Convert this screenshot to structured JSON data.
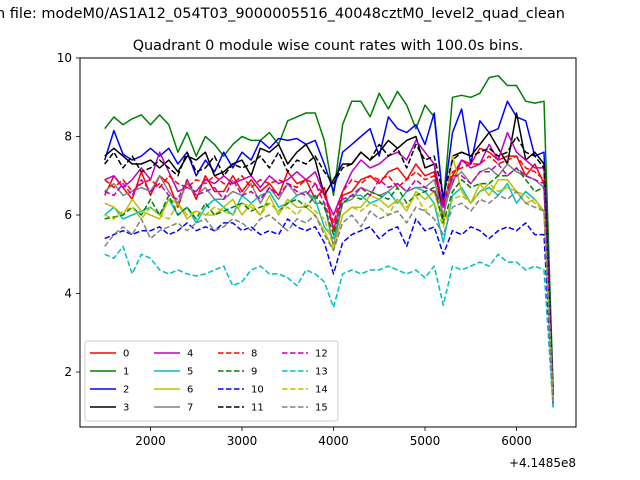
{
  "suptitle": "n file: modeM0/AS1A12_054T03_9000005516_40048cztM0_level2_quad_clean",
  "chart_data": {
    "type": "line",
    "title": "Quadrant 0 module wise count rates with 100.0s bins.",
    "xlabel": "",
    "ylabel": "",
    "x_offset_label": "+4.1485e8",
    "xlim": [
      1230,
      6650
    ],
    "ylim": [
      0.6,
      10.0
    ],
    "xticks": [
      "2000",
      "3000",
      "4000",
      "5000",
      "6000"
    ],
    "yticks": [
      "2",
      "4",
      "6",
      "8",
      "10"
    ],
    "grid": false,
    "legend_position": "lower-left",
    "legend_columns": 4,
    "x": [
      1500,
      1600,
      1700,
      1800,
      1900,
      2000,
      2100,
      2200,
      2300,
      2400,
      2500,
      2600,
      2700,
      2800,
      2900,
      3000,
      3100,
      3200,
      3300,
      3400,
      3500,
      3600,
      3700,
      3800,
      3900,
      4000,
      4100,
      4200,
      4300,
      4400,
      4500,
      4600,
      4700,
      4800,
      4900,
      5000,
      5100,
      5200,
      5300,
      5400,
      5500,
      5600,
      5700,
      5800,
      5900,
      6000,
      6100,
      6200,
      6300,
      6400
    ],
    "series": [
      {
        "name": "0",
        "color": "#ff0000",
        "style": "solid",
        "values": [
          6.5,
          7.0,
          6.7,
          6.4,
          7.1,
          6.5,
          7.0,
          6.8,
          6.2,
          6.9,
          6.4,
          7.0,
          6.6,
          6.6,
          7.0,
          6.6,
          6.9,
          6.6,
          6.8,
          6.5,
          7.1,
          6.8,
          6.9,
          6.4,
          6.7,
          5.6,
          6.5,
          6.6,
          6.9,
          7.0,
          6.8,
          7.1,
          7.2,
          6.9,
          7.3,
          7.0,
          7.1,
          6.2,
          7.0,
          7.4,
          7.3,
          7.7,
          7.6,
          7.4,
          7.5,
          7.5,
          7.0,
          7.3,
          6.8,
          1.5
        ]
      },
      {
        "name": "1",
        "color": "#008000",
        "style": "solid",
        "values": [
          8.2,
          8.5,
          8.3,
          8.45,
          8.55,
          8.3,
          8.55,
          8.3,
          7.6,
          8.1,
          7.5,
          8.0,
          7.8,
          7.5,
          7.8,
          8.0,
          7.9,
          7.9,
          8.1,
          7.8,
          8.4,
          8.5,
          8.6,
          8.6,
          7.9,
          6.5,
          8.3,
          8.9,
          8.9,
          8.5,
          9.1,
          8.7,
          9.15,
          8.8,
          8.2,
          8.8,
          8.5,
          6.3,
          9.0,
          9.05,
          9.0,
          9.1,
          9.5,
          9.55,
          9.3,
          9.3,
          8.9,
          8.85,
          8.9,
          1.6
        ]
      },
      {
        "name": "2",
        "color": "#0000ff",
        "style": "solid",
        "values": [
          7.4,
          8.15,
          7.55,
          7.4,
          7.5,
          7.7,
          7.5,
          7.7,
          7.3,
          7.6,
          7.0,
          7.4,
          7.1,
          7.6,
          7.2,
          7.6,
          7.4,
          7.9,
          7.7,
          7.95,
          7.9,
          7.95,
          7.8,
          7.9,
          7.3,
          6.6,
          7.6,
          7.8,
          8.0,
          8.2,
          7.5,
          8.5,
          8.2,
          8.1,
          8.3,
          7.8,
          8.6,
          6.3,
          8.1,
          8.7,
          7.3,
          8.4,
          8.1,
          8.2,
          8.9,
          8.5,
          8.4,
          7.5,
          7.6,
          1.5
        ]
      },
      {
        "name": "3",
        "color": "#000000",
        "style": "solid",
        "values": [
          7.5,
          7.7,
          7.5,
          7.3,
          7.3,
          7.4,
          7.2,
          7.4,
          7.1,
          7.5,
          7.4,
          7.6,
          7.0,
          7.1,
          7.3,
          7.4,
          7.0,
          7.7,
          7.6,
          7.8,
          7.3,
          7.6,
          7.8,
          7.4,
          6.5,
          6.9,
          7.3,
          7.3,
          7.6,
          7.4,
          7.6,
          7.9,
          7.7,
          7.9,
          8.0,
          7.2,
          7.3,
          5.9,
          7.5,
          7.6,
          7.5,
          7.8,
          8.1,
          7.7,
          7.3,
          8.6,
          7.4,
          7.6,
          7.3,
          1.4
        ]
      },
      {
        "name": "4",
        "color": "#bf00bf",
        "style": "solid",
        "values": [
          6.9,
          7.0,
          6.7,
          6.9,
          7.2,
          6.9,
          7.6,
          7.1,
          6.6,
          6.7,
          6.6,
          6.9,
          6.8,
          7.0,
          6.8,
          6.9,
          7.0,
          6.7,
          7.0,
          6.8,
          6.9,
          7.1,
          6.9,
          7.1,
          6.5,
          6.0,
          6.6,
          7.1,
          7.4,
          7.2,
          7.3,
          7.5,
          7.6,
          7.4,
          7.9,
          7.6,
          7.3,
          6.2,
          6.8,
          7.4,
          7.2,
          7.3,
          7.8,
          7.4,
          8.1,
          7.6,
          7.4,
          7.2,
          7.2,
          1.4
        ]
      },
      {
        "name": "5",
        "color": "#00bfbf",
        "style": "solid",
        "values": [
          6.0,
          6.2,
          5.9,
          6.0,
          6.1,
          6.2,
          6.0,
          6.4,
          6.0,
          6.2,
          5.8,
          6.2,
          6.4,
          6.2,
          6.0,
          6.5,
          6.3,
          6.5,
          6.6,
          6.2,
          6.3,
          6.5,
          6.6,
          6.4,
          5.7,
          5.4,
          6.3,
          6.5,
          6.5,
          6.3,
          6.4,
          6.6,
          6.3,
          6.6,
          6.7,
          6.6,
          6.3,
          5.3,
          6.5,
          6.7,
          6.3,
          6.6,
          6.7,
          6.5,
          6.8,
          6.3,
          6.6,
          6.4,
          6.1,
          1.1
        ]
      },
      {
        "name": "6",
        "color": "#bfbf00",
        "style": "solid",
        "values": [
          6.3,
          6.2,
          6.0,
          6.4,
          6.1,
          6.0,
          5.9,
          6.4,
          6.3,
          5.9,
          6.1,
          6.0,
          6.0,
          6.2,
          6.4,
          6.0,
          6.3,
          6.0,
          6.5,
          6.0,
          6.4,
          6.2,
          6.2,
          6.0,
          5.6,
          5.1,
          6.0,
          6.2,
          6.2,
          6.5,
          6.4,
          6.2,
          6.4,
          6.1,
          6.6,
          6.4,
          6.6,
          5.8,
          7.5,
          6.6,
          6.3,
          6.8,
          6.5,
          6.9,
          6.9,
          6.6,
          6.3,
          6.4,
          6.1,
          1.3
        ]
      },
      {
        "name": "7",
        "color": "#808080",
        "style": "solid",
        "values": [
          6.6,
          6.8,
          6.5,
          6.6,
          6.7,
          6.6,
          7.0,
          6.6,
          6.3,
          6.8,
          6.5,
          6.7,
          6.4,
          6.4,
          6.6,
          6.5,
          6.8,
          6.3,
          6.7,
          6.4,
          6.8,
          6.5,
          6.6,
          6.3,
          6.3,
          5.2,
          6.3,
          6.4,
          6.7,
          6.6,
          6.5,
          6.6,
          6.8,
          6.6,
          6.7,
          6.7,
          6.9,
          6.0,
          6.9,
          7.1,
          6.8,
          7.1,
          7.2,
          7.0,
          7.3,
          7.1,
          7.0,
          6.9,
          6.7,
          1.3
        ]
      },
      {
        "name": "8",
        "color": "#ff0000",
        "style": "dashed",
        "values": [
          6.9,
          6.7,
          6.9,
          6.6,
          6.8,
          6.9,
          6.7,
          7.0,
          6.8,
          6.7,
          6.9,
          6.8,
          7.0,
          6.8,
          6.8,
          7.0,
          6.7,
          6.9,
          6.8,
          6.9,
          6.8,
          6.7,
          6.9,
          6.8,
          6.5,
          5.8,
          6.6,
          6.9,
          6.8,
          7.0,
          6.9,
          7.0,
          6.7,
          6.9,
          7.1,
          6.9,
          7.0,
          6.3,
          7.1,
          7.2,
          7.3,
          7.3,
          7.5,
          7.3,
          7.4,
          7.5,
          7.2,
          7.1,
          6.9,
          1.4
        ]
      },
      {
        "name": "9",
        "color": "#008000",
        "style": "dashed",
        "values": [
          5.9,
          5.95,
          6.0,
          6.2,
          6.0,
          6.4,
          6.0,
          6.5,
          6.0,
          6.2,
          5.9,
          6.3,
          6.0,
          6.1,
          6.2,
          6.3,
          6.1,
          6.2,
          6.3,
          6.1,
          6.3,
          6.4,
          6.2,
          6.5,
          6.2,
          5.5,
          6.3,
          6.5,
          6.4,
          6.6,
          6.5,
          6.4,
          6.7,
          6.3,
          6.5,
          6.6,
          6.7,
          5.8,
          6.6,
          6.9,
          6.7,
          6.8,
          6.8,
          7.0,
          7.0,
          7.2,
          6.9,
          6.6,
          6.7,
          1.3
        ]
      },
      {
        "name": "10",
        "color": "#0000ff",
        "style": "dashed",
        "values": [
          5.4,
          5.5,
          5.6,
          5.5,
          5.6,
          5.6,
          5.7,
          5.5,
          5.6,
          5.8,
          5.6,
          5.7,
          5.6,
          5.8,
          5.8,
          5.6,
          5.7,
          5.5,
          5.6,
          5.5,
          5.9,
          5.7,
          5.6,
          5.7,
          5.3,
          4.5,
          5.3,
          5.5,
          5.6,
          5.7,
          5.4,
          5.6,
          5.7,
          5.2,
          5.9,
          5.6,
          5.7,
          5.0,
          5.6,
          5.5,
          5.7,
          5.6,
          5.4,
          5.6,
          5.7,
          5.6,
          5.8,
          5.5,
          5.5,
          1.2
        ]
      },
      {
        "name": "11",
        "color": "#000000",
        "style": "dashed",
        "values": [
          7.3,
          7.6,
          7.2,
          7.5,
          7.1,
          7.2,
          7.4,
          7.2,
          7.0,
          7.6,
          7.1,
          7.2,
          7.5,
          7.0,
          7.3,
          7.2,
          7.3,
          7.5,
          7.2,
          7.6,
          7.1,
          7.4,
          7.3,
          7.5,
          7.1,
          6.8,
          7.2,
          7.3,
          7.6,
          7.4,
          7.8,
          7.5,
          7.7,
          7.2,
          7.8,
          7.4,
          7.5,
          6.5,
          7.4,
          7.6,
          7.5,
          7.6,
          7.7,
          7.5,
          7.6,
          8.0,
          7.6,
          7.5,
          7.2,
          1.4
        ]
      },
      {
        "name": "12",
        "color": "#bf00bf",
        "style": "dashed",
        "values": [
          6.6,
          6.5,
          6.8,
          6.5,
          6.9,
          6.6,
          6.8,
          6.5,
          6.4,
          6.9,
          6.5,
          6.6,
          6.7,
          6.4,
          6.9,
          6.5,
          6.6,
          6.4,
          6.7,
          6.5,
          6.8,
          6.6,
          6.5,
          6.8,
          6.3,
          5.7,
          6.4,
          6.5,
          6.7,
          6.5,
          6.9,
          6.7,
          6.8,
          6.6,
          6.9,
          6.7,
          6.6,
          6.2,
          7.0,
          7.0,
          6.8,
          7.1,
          7.1,
          7.3,
          7.0,
          7.2,
          7.0,
          6.9,
          6.8,
          1.4
        ]
      },
      {
        "name": "13",
        "color": "#00bfbf",
        "style": "dashed",
        "values": [
          5.0,
          4.9,
          5.2,
          4.5,
          5.0,
          4.9,
          4.6,
          4.5,
          4.6,
          4.5,
          4.45,
          4.5,
          4.6,
          4.7,
          4.2,
          4.3,
          4.6,
          4.7,
          4.5,
          4.5,
          4.4,
          4.2,
          4.6,
          4.5,
          4.3,
          3.65,
          4.5,
          4.6,
          4.5,
          4.6,
          4.6,
          4.7,
          4.6,
          4.5,
          4.6,
          4.4,
          4.7,
          3.7,
          4.7,
          4.6,
          4.7,
          4.8,
          4.7,
          5.0,
          4.8,
          4.8,
          4.6,
          4.7,
          4.6,
          1.1
        ]
      },
      {
        "name": "14",
        "color": "#bfbf00",
        "style": "dashed",
        "values": [
          6.0,
          5.9,
          6.1,
          6.2,
          5.9,
          6.2,
          6.0,
          5.9,
          6.3,
          6.0,
          6.1,
          6.0,
          6.2,
          6.1,
          6.0,
          6.3,
          6.2,
          6.0,
          6.3,
          6.1,
          6.2,
          6.0,
          6.3,
          6.1,
          5.9,
          5.2,
          6.0,
          6.2,
          6.1,
          6.3,
          6.2,
          6.0,
          6.4,
          6.2,
          6.5,
          6.1,
          6.3,
          5.7,
          6.4,
          6.5,
          6.3,
          6.6,
          6.8,
          6.6,
          6.7,
          6.6,
          6.5,
          6.3,
          6.1,
          1.3
        ]
      },
      {
        "name": "15",
        "color": "#808080",
        "style": "dashed",
        "values": [
          5.2,
          5.5,
          5.7,
          5.5,
          5.9,
          5.4,
          5.6,
          5.7,
          5.8,
          5.6,
          5.8,
          5.9,
          5.6,
          5.7,
          5.9,
          5.8,
          5.6,
          5.9,
          6.0,
          5.8,
          5.6,
          5.9,
          5.8,
          6.0,
          5.5,
          5.1,
          5.8,
          6.0,
          5.7,
          6.1,
          5.9,
          6.0,
          6.1,
          5.8,
          6.2,
          6.1,
          5.9,
          5.5,
          6.2,
          6.3,
          6.1,
          6.4,
          6.3,
          6.5,
          6.4,
          6.6,
          6.3,
          6.2,
          6.1,
          1.2
        ]
      }
    ]
  }
}
